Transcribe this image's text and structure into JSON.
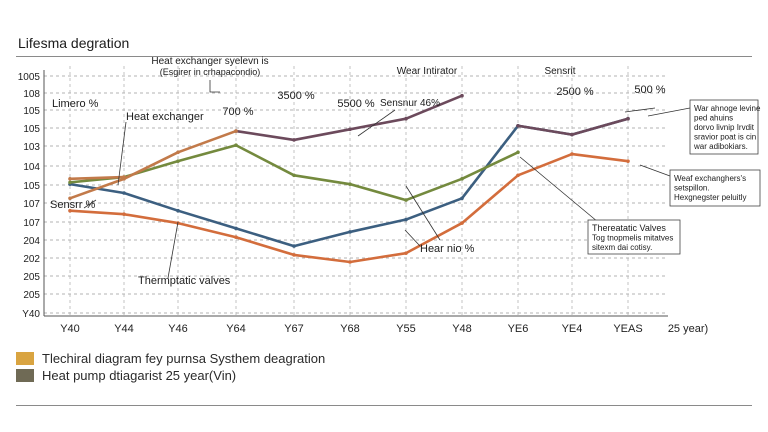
{
  "page": {
    "title": "Lifesma degration",
    "legend": [
      {
        "label": "Tlechiral diagram fey purnsa Systhem deagration",
        "color": "#d9a441"
      },
      {
        "label": "Heat pump dtiagarist 25 year(Vin)",
        "color": "#6f6a55"
      }
    ]
  },
  "chart_data": {
    "type": "line",
    "title": "Lifesma degration",
    "categories": [
      "Y40",
      "Y44",
      "Y46",
      "Y64",
      "Y67",
      "Y68",
      "Y55",
      "Y48",
      "YE6",
      "YE4",
      "YEAS",
      "25 year)"
    ],
    "y_tick_labels": [
      "1005",
      "108",
      "105",
      "105",
      "103",
      "104",
      "105",
      "107",
      "107",
      "204",
      "202",
      "205",
      "205",
      "Y40"
    ],
    "grid": true,
    "series": [
      {
        "color": "#3c5f80",
        "values": [
          7,
          6.5,
          5.5,
          4.5,
          3.5,
          4.3,
          5.0,
          6.2,
          10.3,
          9.8,
          10.7,
          null
        ]
      },
      {
        "color": "#6c4a5c",
        "values": [
          null,
          null,
          null,
          10,
          9.5,
          10.1,
          10.7,
          12.0,
          null,
          null,
          null,
          null
        ]
      },
      {
        "color": "#6c4a5c",
        "values": [
          null,
          null,
          null,
          null,
          null,
          null,
          null,
          null,
          10.3,
          9.8,
          10.7,
          null
        ]
      },
      {
        "color": "#748a3e",
        "values": [
          7.1,
          7.4,
          8.3,
          9.2,
          7.5,
          7.0,
          6.1,
          7.3,
          8.8,
          null,
          null,
          null
        ]
      },
      {
        "color": "#c27a4a",
        "values": [
          6.2,
          7.3,
          8.8,
          10.0,
          null,
          null,
          null,
          null,
          null,
          null,
          null,
          null
        ]
      },
      {
        "color": "#d36d3c",
        "values": [
          5.5,
          5.3,
          4.8,
          4.0,
          3.0,
          2.6,
          3.1,
          4.8,
          7.5,
          8.7,
          8.3,
          null
        ]
      },
      {
        "color": "#c27a4a",
        "values": [
          7.3,
          7.4,
          null,
          null,
          null,
          null,
          null,
          null,
          null,
          null,
          null,
          null
        ]
      }
    ],
    "annotations": [
      {
        "text": "Heat exchanger syelevn is",
        "anchor": "top-center"
      },
      {
        "text": "(Esgirer in crhapacondio)",
        "anchor": "top-center"
      },
      {
        "text": "Wear Intirator",
        "anchor": "top"
      },
      {
        "text": "Sensrit",
        "anchor": "top"
      },
      {
        "text": "3500 %",
        "anchor": "top"
      },
      {
        "text": "2500 %",
        "anchor": "top"
      },
      {
        "text": "500 %",
        "anchor": "top-right"
      },
      {
        "text": "700 %",
        "anchor": "upper-left"
      },
      {
        "text": "5500 %",
        "anchor": "upper-middle"
      },
      {
        "text": "Sensnur 46%",
        "anchor": "upper-middle"
      },
      {
        "text": "Limero %",
        "anchor": "left"
      },
      {
        "text": "Heat exchanger",
        "anchor": "left"
      },
      {
        "text": "Sensrr %",
        "anchor": "left"
      },
      {
        "text": "Thermptatic valves",
        "anchor": "bottom-left"
      },
      {
        "text": "Hear nio %",
        "anchor": "bottom-middle"
      }
    ],
    "callouts": [
      {
        "lines": [
          "War ahnoge levine",
          "ped ahuins",
          "dorvo livnip Irvdit",
          "sravior poat is cin",
          "war adibokiars."
        ]
      },
      {
        "lines": [
          "Weaf exchanghers's",
          "setspillon.",
          "Hexgnegster peluitly"
        ]
      },
      {
        "lines": [
          "Thereatatic Valves",
          "Tog tnopmelis mitatves",
          "sitexm dai cotisy."
        ]
      }
    ]
  }
}
